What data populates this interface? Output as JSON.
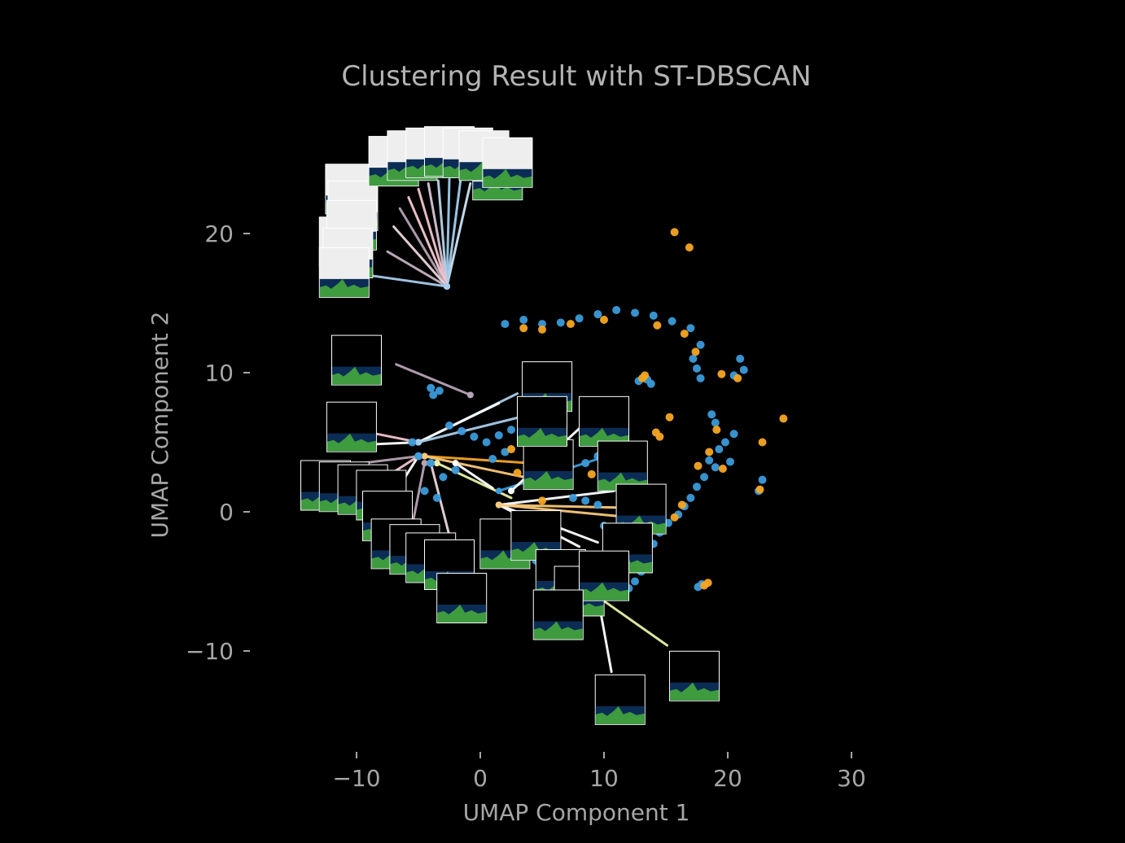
{
  "chart_data": {
    "type": "scatter",
    "title": "Clustering Result with ST-DBSCAN",
    "xlabel": "UMAP Component 1",
    "ylabel": "UMAP Component 2",
    "xlim": [
      -15,
      32
    ],
    "ylim": [
      -17,
      26
    ],
    "xticks": [
      -10,
      0,
      10,
      20,
      30
    ],
    "yticks": [
      -10,
      0,
      10,
      20
    ],
    "xtick_labels": [
      "−10",
      "0",
      "10",
      "20",
      "30"
    ],
    "ytick_labels": [
      "−10",
      "0",
      "10",
      "20"
    ],
    "grid": false,
    "colors": {
      "background": "#000000",
      "blue": "#3a9ad9",
      "orange": "#f5a623",
      "text": "#a6a6a6"
    },
    "series": [
      {
        "color": "#3a9ad9",
        "points": [
          [
            2,
            13.5
          ],
          [
            3.5,
            13.8
          ],
          [
            5,
            13.5
          ],
          [
            6.5,
            13.6
          ],
          [
            8,
            13.9
          ],
          [
            9.5,
            14.2
          ],
          [
            11,
            14.5
          ],
          [
            12.5,
            14.3
          ],
          [
            14,
            14.1
          ],
          [
            15.5,
            13.7
          ],
          [
            17,
            13.2
          ],
          [
            17.8,
            12
          ],
          [
            17.2,
            11
          ],
          [
            17.5,
            10.3
          ],
          [
            17.8,
            9.6
          ],
          [
            21,
            11
          ],
          [
            21.3,
            10.2
          ],
          [
            20.5,
            9.8
          ],
          [
            13.5,
            9.5
          ],
          [
            13.8,
            9.2
          ],
          [
            12.8,
            9.4
          ],
          [
            18.7,
            7
          ],
          [
            19,
            6.4
          ],
          [
            20.5,
            5.6
          ],
          [
            19.8,
            5
          ],
          [
            19.3,
            4.5
          ],
          [
            18.5,
            3.7
          ],
          [
            19,
            3.2
          ],
          [
            20.2,
            3.6
          ],
          [
            18.1,
            2.5
          ],
          [
            17.5,
            1.8
          ],
          [
            17,
            1
          ],
          [
            16.5,
            0.4
          ],
          [
            16,
            -0.2
          ],
          [
            15.2,
            -0.8
          ],
          [
            14.5,
            -1.5
          ],
          [
            14,
            -2.3
          ],
          [
            13.5,
            -3
          ],
          [
            22.8,
            2.3
          ],
          [
            22.5,
            1.5
          ],
          [
            13,
            -4.3
          ],
          [
            12.5,
            -5
          ],
          [
            12,
            -5.5
          ],
          [
            17.9,
            -5.2
          ],
          [
            17.6,
            -5.4
          ],
          [
            -3.3,
            8.7
          ],
          [
            -3.8,
            8.4
          ],
          [
            -4,
            8.9
          ],
          [
            -2.5,
            6.2
          ],
          [
            -1.5,
            5.8
          ],
          [
            -0.5,
            5.4
          ],
          [
            0.5,
            5
          ],
          [
            1.5,
            5.5
          ],
          [
            2.5,
            5.9
          ],
          [
            3.5,
            6.1
          ],
          [
            4.5,
            6
          ],
          [
            5.5,
            5.5
          ],
          [
            1,
            3.8
          ],
          [
            2,
            4.3
          ],
          [
            4,
            4.1
          ],
          [
            7,
            3
          ],
          [
            8.5,
            3.5
          ],
          [
            9.5,
            4
          ],
          [
            10.5,
            4.2
          ],
          [
            7.5,
            1
          ],
          [
            8.5,
            0.8
          ],
          [
            9.5,
            0.5
          ],
          [
            10,
            -1
          ],
          [
            11,
            -2
          ],
          [
            7,
            -3
          ],
          [
            8,
            -4
          ],
          [
            9,
            -4.5
          ],
          [
            4.5,
            -3.5
          ],
          [
            5,
            -4.2
          ],
          [
            3,
            -2.5
          ],
          [
            -2,
            3
          ],
          [
            -3,
            2.5
          ],
          [
            -4,
            3.5
          ],
          [
            -5,
            4
          ],
          [
            -5.5,
            5
          ],
          [
            -4.5,
            1.5
          ],
          [
            -3.5,
            1
          ]
        ]
      },
      {
        "color": "#f5a623",
        "points": [
          [
            15.7,
            20.1
          ],
          [
            16.9,
            19
          ],
          [
            24.5,
            6.7
          ],
          [
            22.8,
            5
          ],
          [
            22.6,
            1.6
          ],
          [
            3.5,
            13.2
          ],
          [
            5,
            13.1
          ],
          [
            7.3,
            13.5
          ],
          [
            10,
            13.8
          ],
          [
            14.3,
            13.4
          ],
          [
            16.5,
            12.8
          ],
          [
            17.4,
            11.5
          ],
          [
            20.8,
            9.6
          ],
          [
            19.5,
            9.9
          ],
          [
            13.3,
            9.8
          ],
          [
            13.1,
            9.6
          ],
          [
            15.3,
            6.8
          ],
          [
            19.1,
            5.9
          ],
          [
            18.5,
            4.3
          ],
          [
            19.6,
            3.1
          ],
          [
            17.6,
            3.3
          ],
          [
            16.3,
            0.5
          ],
          [
            15.7,
            -0.4
          ],
          [
            18.4,
            -5.1
          ],
          [
            18.1,
            -5.3
          ],
          [
            14.2,
            5.7
          ],
          [
            14.5,
            5.4
          ],
          [
            2.5,
            4.5
          ],
          [
            3,
            2.8
          ],
          [
            4,
            2.4
          ],
          [
            6.5,
            2.2
          ],
          [
            9,
            2.7
          ],
          [
            5,
            0.8
          ],
          [
            6,
            -1.5
          ],
          [
            2,
            -1
          ]
        ]
      }
    ],
    "annotation_lines": [
      {
        "color": "#cfe3f5",
        "from": [
          -2.7,
          16.2
        ],
        "to": [
          -0.8,
          23.6
        ]
      },
      {
        "color": "#a5cfee",
        "from": [
          -2.7,
          16.2
        ],
        "to": [
          -1.6,
          23.8
        ]
      },
      {
        "color": "#9ccbeb",
        "from": [
          -2.7,
          16.2
        ],
        "to": [
          -2.5,
          23.9
        ]
      },
      {
        "color": "#b8d6ea",
        "from": [
          -2.7,
          16.2
        ],
        "to": [
          -3.4,
          23.8
        ]
      },
      {
        "color": "#d7c6d5",
        "from": [
          -2.7,
          16.2
        ],
        "to": [
          -4.2,
          23.6
        ]
      },
      {
        "color": "#f2c3cd",
        "from": [
          -2.7,
          16.2
        ],
        "to": [
          -5,
          23.2
        ]
      },
      {
        "color": "#f5c9d2",
        "from": [
          -2.7,
          16.2
        ],
        "to": [
          -5.8,
          22.6
        ]
      },
      {
        "color": "#b6a2b3",
        "from": [
          -2.7,
          16.2
        ],
        "to": [
          -6.5,
          21.8
        ]
      },
      {
        "color": "#ead6dc",
        "from": [
          -2.7,
          16.2
        ],
        "to": [
          -7,
          20.5
        ]
      },
      {
        "color": "#c3b2c1",
        "from": [
          -2.7,
          16.2
        ],
        "to": [
          -7.5,
          18.7
        ]
      },
      {
        "color": "#a7cdea",
        "from": [
          -2.7,
          16.2
        ],
        "to": [
          -9,
          17
        ]
      },
      {
        "color": "#b8a4b6",
        "from": [
          -0.8,
          8.4
        ],
        "to": [
          -6.8,
          10.6
        ]
      },
      {
        "color": "#f2c3cd",
        "from": [
          -5,
          5
        ],
        "to": [
          -9.5,
          5.8
        ]
      },
      {
        "color": "#ffffff",
        "from": [
          -5,
          5
        ],
        "to": [
          -10,
          4.8
        ]
      },
      {
        "color": "#b6a2b3",
        "from": [
          -5,
          4
        ],
        "to": [
          -9.5,
          3.5
        ]
      },
      {
        "color": "#f2c3cd",
        "from": [
          -5,
          4
        ],
        "to": [
          -8.5,
          2
        ]
      },
      {
        "color": "#ffffff",
        "from": [
          -5,
          4
        ],
        "to": [
          -7.5,
          0.5
        ]
      },
      {
        "color": "#b6a2b3",
        "from": [
          -4.5,
          3.5
        ],
        "to": [
          -5.5,
          -1
        ]
      },
      {
        "color": "#ead6dc",
        "from": [
          -4,
          3.5
        ],
        "to": [
          -2.5,
          -1.7
        ]
      },
      {
        "color": "#a7cdea",
        "from": [
          -5,
          5
        ],
        "to": [
          3,
          8.5
        ]
      },
      {
        "color": "#ffffff",
        "from": [
          -5,
          5
        ],
        "to": [
          1.5,
          7.8
        ]
      },
      {
        "color": "#a7cdea",
        "from": [
          -5,
          5
        ],
        "to": [
          5,
          7.2
        ]
      },
      {
        "color": "#f5a623",
        "from": [
          -4.5,
          4
        ],
        "to": [
          4,
          3.5
        ]
      },
      {
        "color": "#f9c97a",
        "from": [
          -4.5,
          4
        ],
        "to": [
          3.5,
          2.5
        ]
      },
      {
        "color": "#e8f0a8",
        "from": [
          -3.5,
          3.5
        ],
        "to": [
          2.5,
          1
        ]
      },
      {
        "color": "#ffffff",
        "from": [
          -2,
          3.5
        ],
        "to": [
          1,
          1.7
        ]
      },
      {
        "color": "#f9c97a",
        "from": [
          1.5,
          0.5
        ],
        "to": [
          11.5,
          0.3
        ]
      },
      {
        "color": "#ffffff",
        "from": [
          1.5,
          0.5
        ],
        "to": [
          10.8,
          1.5
        ]
      },
      {
        "color": "#3a9ad9",
        "from": [
          1.5,
          1.5
        ],
        "to": [
          9.5,
          3.8
        ]
      },
      {
        "color": "#ffffff",
        "from": [
          1.5,
          0.5
        ],
        "to": [
          9.5,
          -2.2
        ]
      },
      {
        "color": "#ffffff",
        "from": [
          1.5,
          0.5
        ],
        "to": [
          8,
          -2.5
        ]
      },
      {
        "color": "#f9c97a",
        "from": [
          1.5,
          0.5
        ],
        "to": [
          11,
          -0.3
        ]
      },
      {
        "color": "#ffffff",
        "from": [
          2.5,
          1.5
        ],
        "to": [
          9,
          6.8
        ]
      },
      {
        "color": "#ffffff",
        "from": [
          9.5,
          -6.1
        ],
        "to": [
          10.6,
          -11.5
        ]
      },
      {
        "color": "#e8f0a8",
        "from": [
          9.5,
          -6.1
        ],
        "to": [
          15.1,
          -9.6
        ]
      }
    ],
    "thumbnails": [
      {
        "center": [
          -11,
          19.4
        ],
        "kind": "light"
      },
      {
        "center": [
          1.4,
          24.2
        ],
        "kind": "light"
      },
      {
        "center": [
          -10.5,
          23.2
        ],
        "kind": "light"
      },
      {
        "center": [
          -10.3,
          22
        ],
        "kind": "light"
      },
      {
        "center": [
          -10.4,
          20.6
        ],
        "kind": "light"
      },
      {
        "center": [
          -7,
          25.2
        ],
        "kind": "light"
      },
      {
        "center": [
          -5.5,
          25.6
        ],
        "kind": "light"
      },
      {
        "center": [
          -4,
          25.8
        ],
        "kind": "light"
      },
      {
        "center": [
          -2.5,
          25.9
        ],
        "kind": "light"
      },
      {
        "center": [
          -1,
          25.8
        ],
        "kind": "light"
      },
      {
        "center": [
          0.3,
          25.6
        ],
        "kind": "light"
      },
      {
        "center": [
          2.2,
          25.1
        ],
        "kind": "light"
      },
      {
        "center": [
          -10.7,
          18.6
        ],
        "kind": "light"
      },
      {
        "center": [
          -11,
          17.2
        ],
        "kind": "light"
      },
      {
        "center": [
          -10,
          10.9
        ],
        "kind": "dark"
      },
      {
        "center": [
          5.4,
          9
        ],
        "kind": "dark"
      },
      {
        "center": [
          -10.4,
          6.1
        ],
        "kind": "dark"
      },
      {
        "center": [
          -12.5,
          1.9
        ],
        "kind": "dark"
      },
      {
        "center": [
          -11,
          1.8
        ],
        "kind": "dark"
      },
      {
        "center": [
          -9.5,
          1.6
        ],
        "kind": "dark"
      },
      {
        "center": [
          -8,
          1.2
        ],
        "kind": "dark"
      },
      {
        "center": [
          -7.5,
          -0.3
        ],
        "kind": "dark"
      },
      {
        "center": [
          -6.8,
          -2.3
        ],
        "kind": "dark"
      },
      {
        "center": [
          -5.3,
          -2.7
        ],
        "kind": "dark"
      },
      {
        "center": [
          -4,
          -3.3
        ],
        "kind": "dark"
      },
      {
        "center": [
          -2.5,
          -3.8
        ],
        "kind": "dark"
      },
      {
        "center": [
          -1.5,
          -6.2
        ],
        "kind": "dark"
      },
      {
        "center": [
          2,
          -2.3
        ],
        "kind": "dark"
      },
      {
        "center": [
          4.5,
          -1.7
        ],
        "kind": "dark"
      },
      {
        "center": [
          5.5,
          3.4
        ],
        "kind": "dark"
      },
      {
        "center": [
          5,
          6.5
        ],
        "kind": "dark"
      },
      {
        "center": [
          10,
          6.5
        ],
        "kind": "dark"
      },
      {
        "center": [
          11.5,
          3.3
        ],
        "kind": "dark"
      },
      {
        "center": [
          13,
          0.2
        ],
        "kind": "dark"
      },
      {
        "center": [
          11.9,
          -2.6
        ],
        "kind": "dark"
      },
      {
        "center": [
          6.5,
          -4.5
        ],
        "kind": "dark"
      },
      {
        "center": [
          8,
          -5.7
        ],
        "kind": "dark"
      },
      {
        "center": [
          10,
          -4.6
        ],
        "kind": "dark"
      },
      {
        "center": [
          6.3,
          -7.4
        ],
        "kind": "dark"
      },
      {
        "center": [
          11.3,
          -13.5
        ],
        "kind": "dark"
      },
      {
        "center": [
          17.3,
          -11.8
        ],
        "kind": "dark"
      }
    ]
  }
}
